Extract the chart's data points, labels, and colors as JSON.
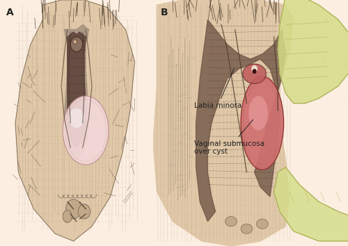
{
  "background_color": "#fceee0",
  "panel_A_label": "A",
  "panel_B_label": "B",
  "label_labia_minora": "Labia minora",
  "label_vaginal_submucosa": "Vaginal submucosa\nover cyst",
  "text_color": "#222222",
  "cyst_color_A": "#f2d8d8",
  "cyst_color_B": "#d07070",
  "cyst_highlight_B": "#e8a0a0",
  "skin_tone": "#e8c8a8",
  "glove_color": "#d4dd88",
  "glove_edge": "#a8aa50",
  "sketch_color": "#7a6a5a",
  "dark_sketch": "#4a3a2a",
  "inner_dark": "#5a4840",
  "line_color": "#222222",
  "font_size_label": 10,
  "font_size_annotation": 7.5
}
